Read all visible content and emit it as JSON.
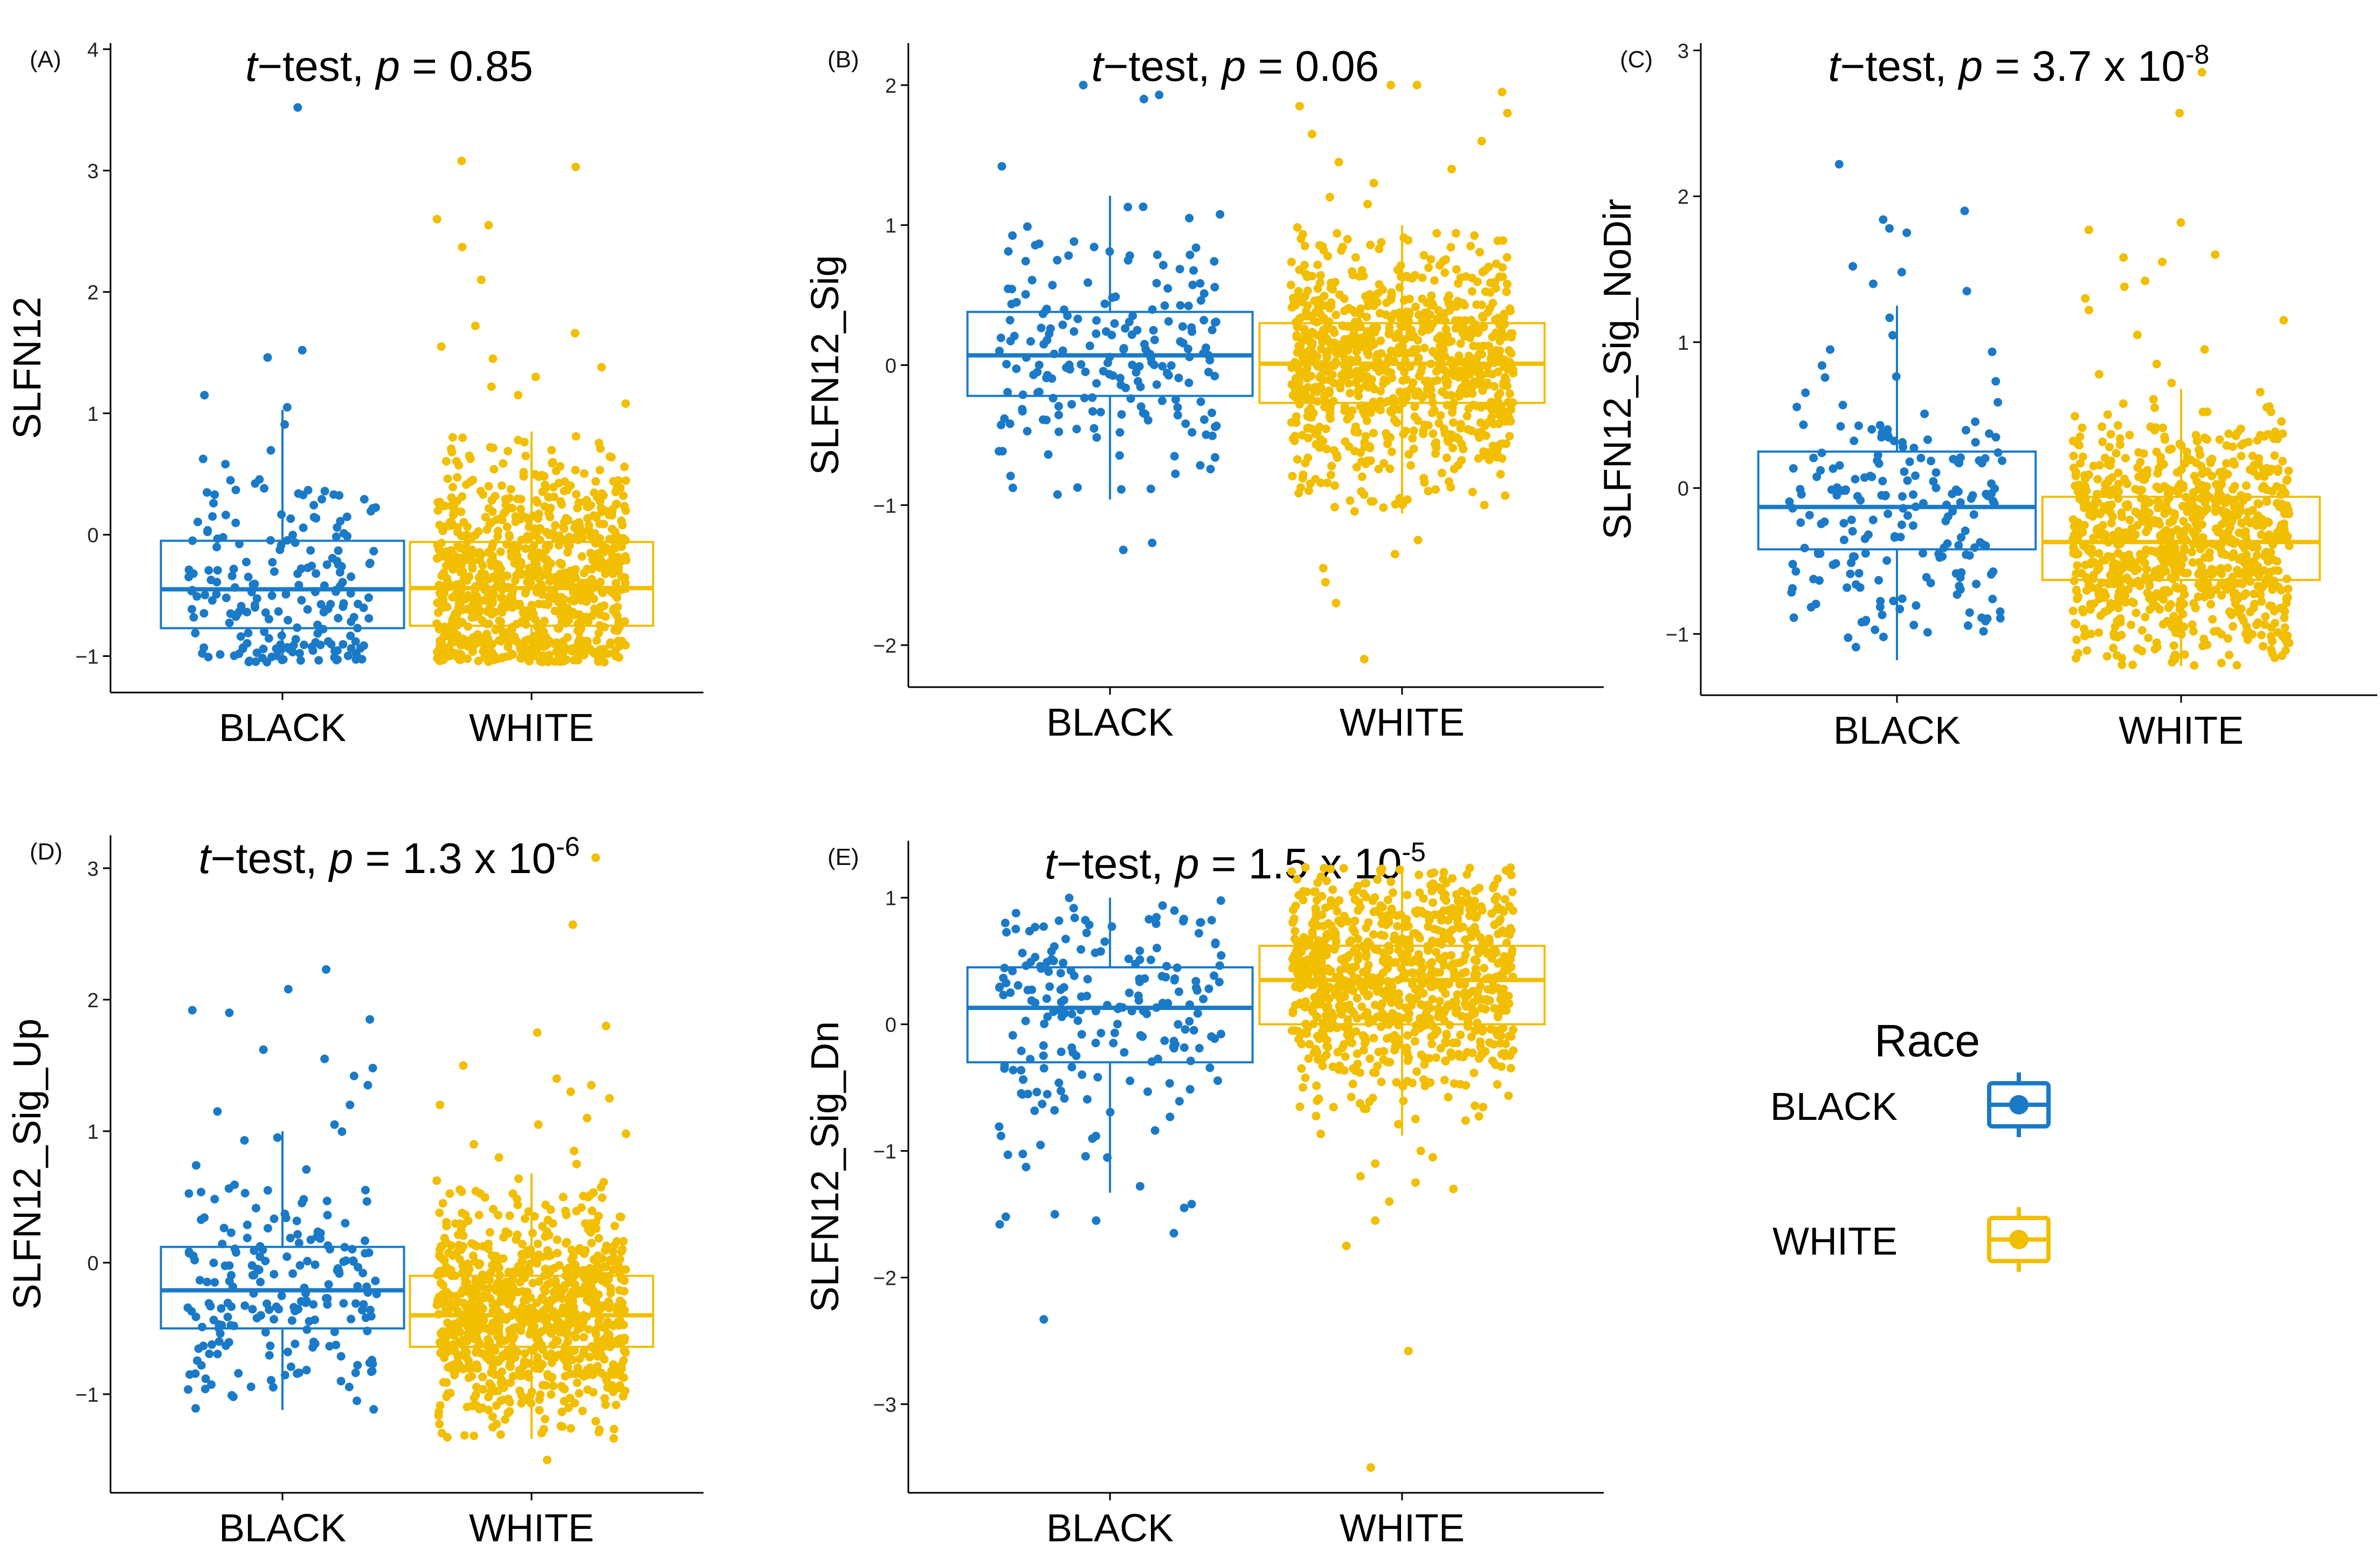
{
  "figure": {
    "legend": {
      "title": "Race",
      "items": [
        {
          "label": "BLACK",
          "color": "#1a7ac8"
        },
        {
          "label": "WHITE",
          "color": "#f2be00"
        }
      ]
    }
  },
  "chart_data": [
    {
      "panel": "(A)",
      "type": "boxplot",
      "ylabel": "SLFN12",
      "ylim": [
        -1.3,
        4.05
      ],
      "yticks": [
        -1,
        0,
        1,
        2,
        3,
        4
      ],
      "title": {
        "stat": "t",
        "rest": "−test, ",
        "pvar": "p",
        "eq": " = 0.85",
        "exp": ""
      },
      "categories": [
        "BLACK",
        "WHITE"
      ],
      "boxes": [
        {
          "group": "BLACK",
          "q1": -0.77,
          "median": -0.45,
          "q3": -0.05,
          "whisker_low": -1.05,
          "whisker_high": 1.03,
          "n": 200,
          "outliers": [
            3.52,
            1.52,
            1.46,
            1.15,
            1.05
          ]
        },
        {
          "group": "WHITE",
          "q1": -0.75,
          "median": -0.44,
          "q3": -0.06,
          "whisker_low": -1.05,
          "whisker_high": 0.85,
          "n": 900,
          "outliers": [
            3.08,
            3.03,
            2.6,
            2.55,
            2.37,
            2.1,
            1.72,
            1.66,
            1.55,
            1.45,
            1.38,
            1.3,
            1.22,
            1.15,
            1.08
          ]
        }
      ]
    },
    {
      "panel": "(B)",
      "type": "boxplot",
      "ylabel": "SLFN12_Sig",
      "ylim": [
        -2.3,
        2.3
      ],
      "yticks": [
        -2,
        -1,
        0,
        1,
        2
      ],
      "title": {
        "stat": "t",
        "rest": "−test, ",
        "pvar": "p",
        "eq": " = 0.06",
        "exp": ""
      },
      "categories": [
        "BLACK",
        "WHITE"
      ],
      "boxes": [
        {
          "group": "BLACK",
          "q1": -0.22,
          "median": 0.07,
          "q3": 0.38,
          "whisker_low": -0.96,
          "whisker_high": 1.21,
          "n": 200,
          "outliers": [
            2.0,
            1.93,
            1.9,
            1.42,
            -1.27,
            -1.32
          ]
        },
        {
          "group": "WHITE",
          "q1": -0.27,
          "median": 0.01,
          "q3": 0.3,
          "whisker_low": -1.06,
          "whisker_high": 1.0,
          "n": 900,
          "outliers": [
            2.0,
            2.0,
            1.95,
            1.85,
            1.8,
            1.65,
            1.6,
            1.45,
            1.4,
            1.3,
            1.2,
            1.15,
            -1.25,
            -1.35,
            -1.45,
            -1.55,
            -1.7,
            -2.1
          ]
        }
      ]
    },
    {
      "panel": "(C)",
      "type": "boxplot",
      "ylabel": "SLFN12_Sig_NoDir",
      "ylim": [
        -1.42,
        3.05
      ],
      "yticks": [
        -1,
        0,
        1,
        2,
        3
      ],
      "title": {
        "stat": "t",
        "rest": "−test, ",
        "pvar": "p",
        "eq": " = 3.7 x 10",
        "exp": "-8"
      },
      "categories": [
        "BLACK",
        "WHITE"
      ],
      "boxes": [
        {
          "group": "BLACK",
          "q1": -0.42,
          "median": -0.13,
          "q3": 0.25,
          "whisker_low": -1.18,
          "whisker_high": 1.25,
          "n": 200,
          "outliers": [
            2.22,
            1.9,
            1.84,
            1.78,
            1.75,
            1.52,
            1.48,
            1.4,
            1.35
          ]
        },
        {
          "group": "WHITE",
          "q1": -0.63,
          "median": -0.37,
          "q3": -0.06,
          "whisker_low": -1.22,
          "whisker_high": 0.68,
          "n": 900,
          "outliers": [
            2.85,
            2.57,
            1.82,
            1.77,
            1.6,
            1.58,
            1.55,
            1.42,
            1.38,
            1.3,
            1.22,
            1.15,
            1.05,
            0.95,
            0.85,
            0.78,
            0.72
          ]
        }
      ]
    },
    {
      "panel": "(D)",
      "type": "boxplot",
      "ylabel": "SLFN12_Sig_Up",
      "ylim": [
        -1.75,
        3.25
      ],
      "yticks": [
        -1,
        0,
        1,
        2,
        3
      ],
      "title": {
        "stat": "t",
        "rest": "−test, ",
        "pvar": "p",
        "eq": " = 1.3 x 10",
        "exp": "-6"
      },
      "categories": [
        "BLACK",
        "WHITE"
      ],
      "boxes": [
        {
          "group": "BLACK",
          "q1": -0.5,
          "median": -0.21,
          "q3": 0.12,
          "whisker_low": -1.12,
          "whisker_high": 1.0,
          "n": 200,
          "outliers": [
            2.23,
            2.08,
            1.92,
            1.9,
            1.85,
            1.62,
            1.55,
            1.48,
            1.42,
            1.35,
            1.2,
            1.15,
            1.05
          ]
        },
        {
          "group": "WHITE",
          "q1": -0.64,
          "median": -0.4,
          "q3": -0.1,
          "whisker_low": -1.34,
          "whisker_high": 0.68,
          "n": 900,
          "outliers": [
            3.08,
            2.57,
            1.8,
            1.75,
            1.5,
            1.4,
            1.35,
            1.3,
            1.25,
            1.2,
            1.1,
            1.05,
            0.98,
            0.9,
            0.85,
            0.8,
            0.75,
            -1.5
          ]
        }
      ]
    },
    {
      "panel": "(E)",
      "type": "boxplot",
      "ylabel": "SLFN12_Sig_Dn",
      "ylim": [
        -3.7,
        1.45
      ],
      "yticks": [
        -3,
        -2,
        -1,
        0,
        1
      ],
      "title": {
        "stat": "t",
        "rest": "−test, ",
        "pvar": "p",
        "eq": " = 1.5 x 10",
        "exp": "-5"
      },
      "categories": [
        "BLACK",
        "WHITE"
      ],
      "boxes": [
        {
          "group": "BLACK",
          "q1": -0.3,
          "median": 0.13,
          "q3": 0.45,
          "whisker_low": -1.33,
          "whisker_high": 1.0,
          "n": 200,
          "outliers": [
            -1.42,
            -1.45,
            -1.5,
            -1.52,
            -1.55,
            -1.58,
            -1.65,
            -2.33
          ]
        },
        {
          "group": "WHITE",
          "q1": 0.0,
          "median": 0.35,
          "q3": 0.62,
          "whisker_low": -0.88,
          "whisker_high": 1.25,
          "n": 900,
          "outliers": [
            -1.0,
            -1.05,
            -1.1,
            -1.2,
            -1.25,
            -1.3,
            -1.4,
            -1.55,
            -1.75,
            -2.58,
            -3.5
          ]
        }
      ]
    }
  ]
}
